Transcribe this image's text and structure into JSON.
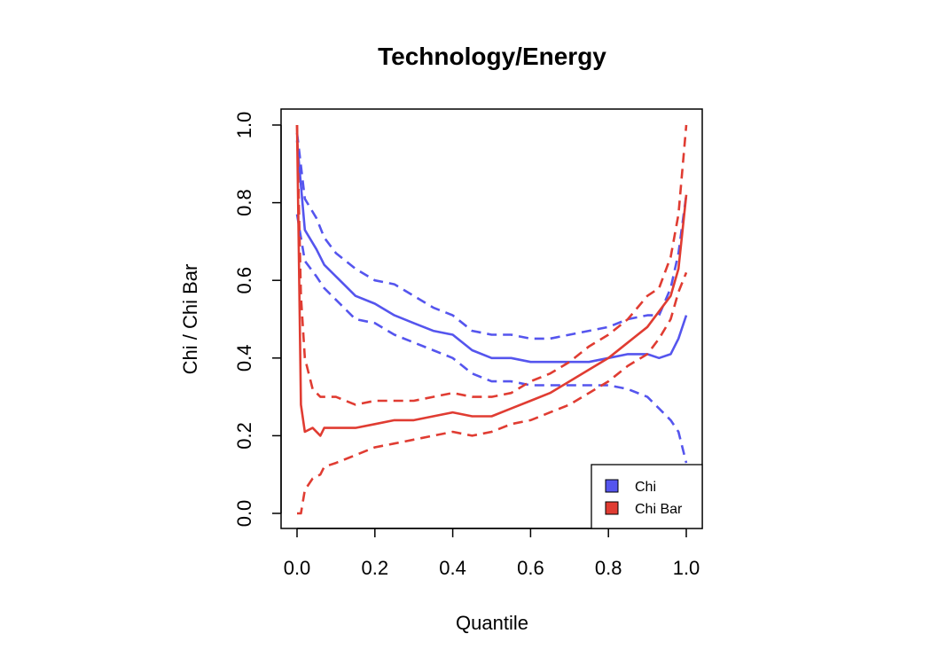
{
  "chart_data": {
    "type": "line",
    "title": "Technology/Energy",
    "xlabel": "Quantile",
    "ylabel": "Chi / Chi Bar",
    "xlim": [
      0,
      1
    ],
    "ylim": [
      0,
      1
    ],
    "xticks": [
      "0.0",
      "0.2",
      "0.4",
      "0.6",
      "0.8",
      "1.0"
    ],
    "yticks": [
      "0.0",
      "0.2",
      "0.4",
      "0.6",
      "0.8",
      "1.0"
    ],
    "grid": false,
    "legend_position": "bottom-right",
    "legend": [
      {
        "label": "Chi",
        "color": "#5555ee"
      },
      {
        "label": "Chi Bar",
        "color": "#e03c32"
      }
    ],
    "series": [
      {
        "name": "Chi",
        "role": "estimate",
        "style": "solid",
        "color": "#5555ee",
        "x": [
          0.0,
          0.02,
          0.05,
          0.07,
          0.1,
          0.15,
          0.2,
          0.25,
          0.3,
          0.35,
          0.4,
          0.45,
          0.5,
          0.55,
          0.6,
          0.65,
          0.7,
          0.75,
          0.8,
          0.85,
          0.9,
          0.93,
          0.96,
          0.98,
          1.0
        ],
        "y": [
          0.96,
          0.73,
          0.68,
          0.64,
          0.61,
          0.56,
          0.54,
          0.51,
          0.49,
          0.47,
          0.46,
          0.42,
          0.4,
          0.4,
          0.39,
          0.39,
          0.39,
          0.39,
          0.4,
          0.41,
          0.41,
          0.4,
          0.41,
          0.45,
          0.51
        ]
      },
      {
        "name": "Chi",
        "role": "upper bound",
        "style": "dashed",
        "color": "#5555ee",
        "x": [
          0.0,
          0.02,
          0.05,
          0.07,
          0.1,
          0.15,
          0.2,
          0.25,
          0.3,
          0.35,
          0.4,
          0.45,
          0.5,
          0.55,
          0.6,
          0.65,
          0.7,
          0.75,
          0.8,
          0.85,
          0.9,
          0.93,
          0.96,
          0.98,
          1.0
        ],
        "y": [
          0.98,
          0.81,
          0.76,
          0.71,
          0.67,
          0.63,
          0.6,
          0.59,
          0.56,
          0.53,
          0.51,
          0.47,
          0.46,
          0.46,
          0.45,
          0.45,
          0.46,
          0.47,
          0.48,
          0.5,
          0.51,
          0.51,
          0.58,
          0.67,
          0.82
        ]
      },
      {
        "name": "Chi",
        "role": "lower bound",
        "style": "dashed",
        "color": "#5555ee",
        "x": [
          0.0,
          0.02,
          0.05,
          0.07,
          0.1,
          0.15,
          0.2,
          0.25,
          0.3,
          0.35,
          0.4,
          0.45,
          0.5,
          0.55,
          0.6,
          0.65,
          0.7,
          0.75,
          0.8,
          0.85,
          0.9,
          0.93,
          0.96,
          0.98,
          1.0
        ],
        "y": [
          0.77,
          0.65,
          0.61,
          0.58,
          0.55,
          0.5,
          0.49,
          0.46,
          0.44,
          0.42,
          0.4,
          0.36,
          0.34,
          0.34,
          0.33,
          0.33,
          0.33,
          0.33,
          0.33,
          0.32,
          0.3,
          0.27,
          0.24,
          0.21,
          0.13
        ]
      },
      {
        "name": "Chi Bar",
        "role": "estimate",
        "style": "solid",
        "color": "#e03c32",
        "x": [
          0.0,
          0.01,
          0.02,
          0.04,
          0.06,
          0.07,
          0.1,
          0.15,
          0.2,
          0.25,
          0.3,
          0.35,
          0.4,
          0.45,
          0.5,
          0.55,
          0.6,
          0.65,
          0.7,
          0.75,
          0.8,
          0.85,
          0.9,
          0.93,
          0.96,
          0.98,
          1.0
        ],
        "y": [
          1.0,
          0.28,
          0.21,
          0.22,
          0.2,
          0.22,
          0.22,
          0.22,
          0.23,
          0.24,
          0.24,
          0.25,
          0.26,
          0.25,
          0.25,
          0.27,
          0.29,
          0.31,
          0.34,
          0.37,
          0.4,
          0.44,
          0.48,
          0.52,
          0.56,
          0.63,
          0.82
        ]
      },
      {
        "name": "Chi Bar",
        "role": "upper bound",
        "style": "dashed",
        "color": "#e03c32",
        "x": [
          0.0,
          0.01,
          0.02,
          0.04,
          0.06,
          0.1,
          0.15,
          0.2,
          0.25,
          0.3,
          0.35,
          0.4,
          0.45,
          0.5,
          0.55,
          0.6,
          0.65,
          0.7,
          0.75,
          0.8,
          0.85,
          0.9,
          0.93,
          0.96,
          0.98,
          1.0
        ],
        "y": [
          1.0,
          0.56,
          0.4,
          0.32,
          0.3,
          0.3,
          0.28,
          0.29,
          0.29,
          0.29,
          0.3,
          0.31,
          0.3,
          0.3,
          0.31,
          0.34,
          0.36,
          0.39,
          0.43,
          0.46,
          0.5,
          0.56,
          0.58,
          0.66,
          0.77,
          1.0
        ]
      },
      {
        "name": "Chi Bar",
        "role": "lower bound",
        "style": "dashed",
        "color": "#e03c32",
        "x": [
          0.0,
          0.01,
          0.02,
          0.04,
          0.06,
          0.07,
          0.1,
          0.15,
          0.2,
          0.25,
          0.3,
          0.35,
          0.4,
          0.45,
          0.5,
          0.55,
          0.6,
          0.65,
          0.7,
          0.75,
          0.8,
          0.85,
          0.9,
          0.93,
          0.96,
          0.98,
          1.0
        ],
        "y": [
          0.0,
          0.0,
          0.06,
          0.09,
          0.1,
          0.12,
          0.13,
          0.15,
          0.17,
          0.18,
          0.19,
          0.2,
          0.21,
          0.2,
          0.21,
          0.23,
          0.24,
          0.26,
          0.28,
          0.31,
          0.34,
          0.38,
          0.41,
          0.45,
          0.5,
          0.57,
          0.62
        ]
      }
    ]
  }
}
